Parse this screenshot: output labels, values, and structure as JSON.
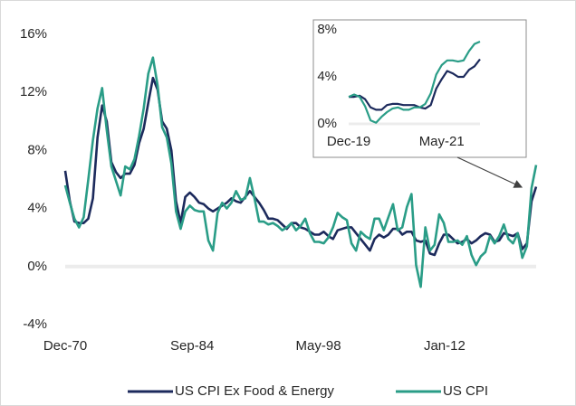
{
  "chart_data": [
    {
      "type": "line",
      "x": [
        "1970-12",
        "1971-06",
        "1971-12",
        "1972-06",
        "1972-12",
        "1973-06",
        "1973-12",
        "1974-06",
        "1974-12",
        "1975-06",
        "1975-12",
        "1976-06",
        "1976-12",
        "1977-06",
        "1977-12",
        "1978-06",
        "1978-12",
        "1979-06",
        "1979-12",
        "1980-06",
        "1980-12",
        "1981-06",
        "1981-12",
        "1982-06",
        "1982-12",
        "1983-06",
        "1983-12",
        "1984-06",
        "1984-12",
        "1985-06",
        "1985-12",
        "1986-06",
        "1986-12",
        "1987-06",
        "1987-12",
        "1988-06",
        "1988-12",
        "1989-06",
        "1989-12",
        "1990-06",
        "1990-12",
        "1991-06",
        "1991-12",
        "1992-06",
        "1992-12",
        "1993-06",
        "1993-12",
        "1994-06",
        "1994-12",
        "1995-06",
        "1995-12",
        "1996-06",
        "1996-12",
        "1997-06",
        "1997-12",
        "1998-06",
        "1998-12",
        "1999-06",
        "1999-12",
        "2000-06",
        "2000-12",
        "2001-06",
        "2001-12",
        "2002-06",
        "2002-12",
        "2003-06",
        "2003-12",
        "2004-06",
        "2004-12",
        "2005-06",
        "2005-12",
        "2006-06",
        "2006-12",
        "2007-06",
        "2007-12",
        "2008-06",
        "2008-12",
        "2009-06",
        "2009-12",
        "2010-06",
        "2010-12",
        "2011-06",
        "2011-12",
        "2012-06",
        "2012-12",
        "2013-06",
        "2013-12",
        "2014-06",
        "2014-12",
        "2015-06",
        "2015-12",
        "2016-06",
        "2016-12",
        "2017-06",
        "2017-12",
        "2018-06",
        "2018-12",
        "2019-06",
        "2019-12",
        "2020-06",
        "2020-12",
        "2021-06",
        "2021-12"
      ],
      "series": [
        {
          "name": "US CPI Ex Food & Energy",
          "color": "#1c2a5c",
          "values": [
            6.6,
            4.5,
            3.1,
            3.0,
            3.0,
            3.3,
            4.7,
            8.9,
            11.1,
            10.0,
            7.2,
            6.5,
            6.1,
            6.4,
            6.4,
            7.0,
            8.5,
            9.5,
            11.3,
            13.0,
            12.2,
            10.0,
            9.5,
            8.0,
            4.5,
            3.0,
            4.8,
            5.1,
            4.8,
            4.4,
            4.3,
            4.0,
            3.8,
            4.0,
            4.2,
            4.4,
            4.7,
            4.5,
            4.4,
            4.8,
            5.2,
            4.8,
            4.4,
            3.9,
            3.3,
            3.3,
            3.2,
            2.9,
            2.6,
            3.0,
            3.0,
            2.7,
            2.6,
            2.4,
            2.2,
            2.2,
            2.4,
            2.1,
            1.9,
            2.5,
            2.6,
            2.7,
            2.7,
            2.3,
            1.9,
            1.5,
            1.1,
            1.9,
            2.2,
            2.0,
            2.2,
            2.6,
            2.6,
            2.2,
            2.4,
            2.4,
            1.8,
            1.7,
            1.8,
            0.9,
            0.8,
            1.6,
            2.2,
            2.2,
            1.9,
            1.6,
            1.7,
            1.9,
            1.6,
            1.8,
            2.1,
            2.3,
            2.2,
            1.7,
            1.8,
            2.3,
            2.2,
            2.1,
            2.3,
            1.2,
            1.6,
            4.5,
            5.5
          ]
        },
        {
          "name": "US CPI",
          "color": "#2a9d87",
          "values": [
            5.6,
            4.4,
            3.3,
            2.7,
            3.4,
            6.0,
            8.7,
            10.9,
            12.3,
            9.4,
            6.9,
            5.9,
            4.9,
            6.9,
            6.7,
            7.4,
            9.0,
            10.9,
            13.3,
            14.4,
            12.5,
            9.6,
            8.9,
            7.1,
            3.8,
            2.6,
            3.8,
            4.2,
            3.9,
            3.8,
            3.8,
            1.8,
            1.1,
            3.7,
            4.4,
            4.0,
            4.4,
            5.2,
            4.6,
            4.7,
            6.1,
            4.7,
            3.1,
            3.1,
            2.9,
            3.0,
            2.8,
            2.5,
            2.7,
            3.0,
            2.5,
            2.8,
            3.3,
            2.3,
            1.7,
            1.7,
            1.6,
            2.0,
            2.7,
            3.7,
            3.4,
            3.2,
            1.6,
            1.1,
            2.4,
            2.1,
            1.9,
            3.3,
            3.3,
            2.5,
            3.4,
            4.3,
            2.5,
            2.7,
            4.1,
            5.0,
            0.1,
            -1.4,
            2.7,
            1.1,
            1.5,
            3.6,
            3.0,
            1.7,
            1.7,
            1.8,
            1.5,
            2.1,
            0.8,
            0.1,
            0.7,
            1.0,
            2.1,
            1.6,
            2.1,
            2.9,
            1.9,
            1.6,
            2.3,
            0.6,
            1.4,
            5.4,
            7.0
          ]
        }
      ],
      "xlim": [
        "1970-12",
        "2021-12"
      ],
      "xticks": [
        {
          "value": "1970-12",
          "label": "Dec-70"
        },
        {
          "value": "1984-09",
          "label": "Sep-84"
        },
        {
          "value": "1998-05",
          "label": "May-98"
        },
        {
          "value": "2012-01",
          "label": "Jan-12"
        }
      ],
      "ylim": [
        -4,
        16
      ],
      "yticks": [
        {
          "value": -4,
          "label": "-4%"
        },
        {
          "value": 0,
          "label": "0%"
        },
        {
          "value": 4,
          "label": "4%"
        },
        {
          "value": 8,
          "label": "8%"
        },
        {
          "value": 12,
          "label": "12%"
        },
        {
          "value": 16,
          "label": "16%"
        }
      ],
      "legend": "bottom"
    },
    {
      "type": "line",
      "x": [
        "2019-12",
        "2020-01",
        "2020-02",
        "2020-03",
        "2020-04",
        "2020-05",
        "2020-06",
        "2020-07",
        "2020-08",
        "2020-09",
        "2020-10",
        "2020-11",
        "2020-12",
        "2021-01",
        "2021-02",
        "2021-03",
        "2021-04",
        "2021-05",
        "2021-06",
        "2021-07",
        "2021-08",
        "2021-09",
        "2021-10",
        "2021-11",
        "2021-12"
      ],
      "series": [
        {
          "color": "#1c2a5c",
          "values": [
            2.3,
            2.3,
            2.4,
            2.1,
            1.4,
            1.2,
            1.2,
            1.6,
            1.7,
            1.7,
            1.6,
            1.6,
            1.6,
            1.4,
            1.3,
            1.6,
            3.0,
            3.8,
            4.5,
            4.3,
            4.0,
            4.0,
            4.6,
            4.9,
            5.5
          ]
        },
        {
          "color": "#2a9d87",
          "values": [
            2.3,
            2.5,
            2.3,
            1.5,
            0.3,
            0.1,
            0.6,
            1.0,
            1.3,
            1.4,
            1.2,
            1.2,
            1.4,
            1.4,
            1.7,
            2.6,
            4.2,
            5.0,
            5.4,
            5.4,
            5.3,
            5.4,
            6.2,
            6.8,
            7.0
          ]
        }
      ],
      "xlim": [
        "2019-12",
        "2021-12"
      ],
      "xticks": [
        {
          "value": "2019-12",
          "label": "Dec-19"
        },
        {
          "value": "2021-05",
          "label": "May-21"
        }
      ],
      "ylim": [
        0,
        8
      ],
      "yticks": [
        {
          "value": 0,
          "label": "0%"
        },
        {
          "value": 4,
          "label": "4%"
        },
        {
          "value": 8,
          "label": "8%"
        }
      ]
    }
  ]
}
